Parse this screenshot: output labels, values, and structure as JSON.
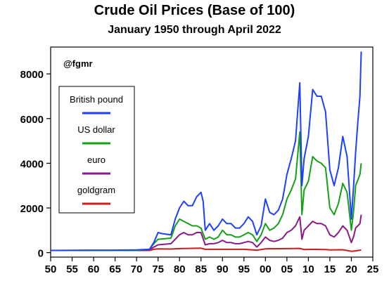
{
  "chart_data": {
    "type": "line",
    "title": "Crude Oil Prices (Base of 100)",
    "subtitle": "January 1950 through April 2022",
    "watermark": "@fgmr",
    "xlabel": "",
    "ylabel": "",
    "xlim": [
      1950,
      2025
    ],
    "ylim": [
      -200,
      9200
    ],
    "x_ticks": [
      1950,
      1955,
      1960,
      1965,
      1970,
      1975,
      1980,
      1985,
      1990,
      1995,
      2000,
      2005,
      2010,
      2015,
      2020,
      2025
    ],
    "x_tick_labels": [
      "50",
      "55",
      "60",
      "65",
      "70",
      "75",
      "80",
      "85",
      "90",
      "95",
      "00",
      "05",
      "10",
      "15",
      "20",
      "25"
    ],
    "y_ticks": [
      0,
      2000,
      4000,
      6000,
      8000
    ],
    "y_tick_labels": [
      "0",
      "2000",
      "4000",
      "6000",
      "8000"
    ],
    "grid": false,
    "legend_position": "upper-left",
    "series": [
      {
        "name": "British pound",
        "color": "#1f3fff",
        "points": [
          [
            1950,
            100
          ],
          [
            1960,
            110
          ],
          [
            1965,
            110
          ],
          [
            1970,
            120
          ],
          [
            1973,
            150
          ],
          [
            1974,
            450
          ],
          [
            1975,
            900
          ],
          [
            1976,
            850
          ],
          [
            1978,
            800
          ],
          [
            1979,
            1500
          ],
          [
            1980,
            2000
          ],
          [
            1981,
            2300
          ],
          [
            1982,
            2100
          ],
          [
            1983,
            2100
          ],
          [
            1984,
            2500
          ],
          [
            1985,
            2700
          ],
          [
            1985.5,
            2300
          ],
          [
            1986,
            1000
          ],
          [
            1987,
            1300
          ],
          [
            1988,
            1000
          ],
          [
            1989,
            1200
          ],
          [
            1990,
            1500
          ],
          [
            1991,
            1300
          ],
          [
            1992,
            1300
          ],
          [
            1993,
            1100
          ],
          [
            1994,
            1100
          ],
          [
            1995,
            1300
          ],
          [
            1996,
            1600
          ],
          [
            1997,
            1400
          ],
          [
            1998,
            800
          ],
          [
            1999,
            1200
          ],
          [
            2000,
            2400
          ],
          [
            2001,
            1800
          ],
          [
            2002,
            1700
          ],
          [
            2003,
            1900
          ],
          [
            2004,
            2400
          ],
          [
            2005,
            3500
          ],
          [
            2006,
            4200
          ],
          [
            2007,
            5000
          ],
          [
            2008,
            7600
          ],
          [
            2008.5,
            3000
          ],
          [
            2009,
            4200
          ],
          [
            2010,
            5200
          ],
          [
            2011,
            7300
          ],
          [
            2012,
            7000
          ],
          [
            2013,
            7000
          ],
          [
            2014,
            6300
          ],
          [
            2015,
            3700
          ],
          [
            2016,
            3000
          ],
          [
            2017,
            3800
          ],
          [
            2018,
            5200
          ],
          [
            2019,
            4300
          ],
          [
            2020,
            1500
          ],
          [
            2020.5,
            2900
          ],
          [
            2021,
            4500
          ],
          [
            2021.5,
            5800
          ],
          [
            2022,
            7000
          ],
          [
            2022.3,
            9000
          ]
        ]
      },
      {
        "name": "US dollar",
        "color": "#15a015",
        "points": [
          [
            1950,
            100
          ],
          [
            1960,
            100
          ],
          [
            1965,
            100
          ],
          [
            1970,
            100
          ],
          [
            1973,
            150
          ],
          [
            1974,
            400
          ],
          [
            1975,
            600
          ],
          [
            1978,
            650
          ],
          [
            1979,
            1200
          ],
          [
            1980,
            1500
          ],
          [
            1981,
            1400
          ],
          [
            1982,
            1300
          ],
          [
            1983,
            1200
          ],
          [
            1984,
            1200
          ],
          [
            1985,
            1100
          ],
          [
            1986,
            600
          ],
          [
            1987,
            700
          ],
          [
            1988,
            600
          ],
          [
            1989,
            700
          ],
          [
            1990,
            1000
          ],
          [
            1991,
            800
          ],
          [
            1992,
            800
          ],
          [
            1993,
            700
          ],
          [
            1994,
            700
          ],
          [
            1995,
            800
          ],
          [
            1996,
            900
          ],
          [
            1997,
            800
          ],
          [
            1998,
            500
          ],
          [
            1999,
            800
          ],
          [
            2000,
            1300
          ],
          [
            2001,
            1000
          ],
          [
            2002,
            1100
          ],
          [
            2003,
            1300
          ],
          [
            2004,
            1700
          ],
          [
            2005,
            2400
          ],
          [
            2006,
            2800
          ],
          [
            2007,
            3300
          ],
          [
            2008,
            5400
          ],
          [
            2008.5,
            1700
          ],
          [
            2009,
            2800
          ],
          [
            2010,
            3200
          ],
          [
            2011,
            4300
          ],
          [
            2012,
            4100
          ],
          [
            2013,
            4000
          ],
          [
            2014,
            3800
          ],
          [
            2015,
            2000
          ],
          [
            2016,
            1700
          ],
          [
            2017,
            2200
          ],
          [
            2018,
            3100
          ],
          [
            2019,
            2700
          ],
          [
            2020,
            1000
          ],
          [
            2020.5,
            1800
          ],
          [
            2021,
            3000
          ],
          [
            2022,
            3500
          ],
          [
            2022.3,
            4000
          ]
        ]
      },
      {
        "name": "euro",
        "color": "#8a1a8a",
        "points": [
          [
            1950,
            100
          ],
          [
            1960,
            100
          ],
          [
            1965,
            100
          ],
          [
            1970,
            100
          ],
          [
            1973,
            120
          ],
          [
            1974,
            250
          ],
          [
            1975,
            350
          ],
          [
            1978,
            400
          ],
          [
            1979,
            600
          ],
          [
            1980,
            800
          ],
          [
            1981,
            900
          ],
          [
            1982,
            800
          ],
          [
            1983,
            800
          ],
          [
            1984,
            900
          ],
          [
            1985,
            900
          ],
          [
            1986,
            350
          ],
          [
            1987,
            400
          ],
          [
            1988,
            400
          ],
          [
            1989,
            450
          ],
          [
            1990,
            550
          ],
          [
            1991,
            450
          ],
          [
            1992,
            450
          ],
          [
            1993,
            400
          ],
          [
            1994,
            400
          ],
          [
            1995,
            450
          ],
          [
            1996,
            500
          ],
          [
            1997,
            450
          ],
          [
            1998,
            250
          ],
          [
            1999,
            450
          ],
          [
            2000,
            700
          ],
          [
            2001,
            550
          ],
          [
            2002,
            500
          ],
          [
            2003,
            550
          ],
          [
            2004,
            650
          ],
          [
            2005,
            900
          ],
          [
            2006,
            1000
          ],
          [
            2007,
            1200
          ],
          [
            2008,
            1600
          ],
          [
            2008.5,
            600
          ],
          [
            2009,
            1000
          ],
          [
            2010,
            1200
          ],
          [
            2011,
            1400
          ],
          [
            2012,
            1300
          ],
          [
            2013,
            1300
          ],
          [
            2014,
            1200
          ],
          [
            2015,
            800
          ],
          [
            2016,
            700
          ],
          [
            2017,
            900
          ],
          [
            2018,
            1200
          ],
          [
            2019,
            1000
          ],
          [
            2020,
            450
          ],
          [
            2020.5,
            700
          ],
          [
            2021,
            1100
          ],
          [
            2022,
            1300
          ],
          [
            2022.3,
            1700
          ]
        ]
      },
      {
        "name": "goldgram",
        "color": "#c81e1e",
        "points": [
          [
            1950,
            100
          ],
          [
            1960,
            100
          ],
          [
            1970,
            100
          ],
          [
            1973,
            100
          ],
          [
            1974,
            150
          ],
          [
            1975,
            170
          ],
          [
            1978,
            160
          ],
          [
            1980,
            180
          ],
          [
            1985,
            200
          ],
          [
            1986,
            150
          ],
          [
            1990,
            150
          ],
          [
            1995,
            150
          ],
          [
            1998,
            110
          ],
          [
            2000,
            170
          ],
          [
            2005,
            180
          ],
          [
            2008,
            190
          ],
          [
            2009,
            140
          ],
          [
            2011,
            150
          ],
          [
            2014,
            140
          ],
          [
            2015,
            120
          ],
          [
            2018,
            130
          ],
          [
            2020,
            60
          ],
          [
            2021,
            80
          ],
          [
            2022,
            110
          ],
          [
            2022.3,
            120
          ]
        ]
      }
    ]
  }
}
